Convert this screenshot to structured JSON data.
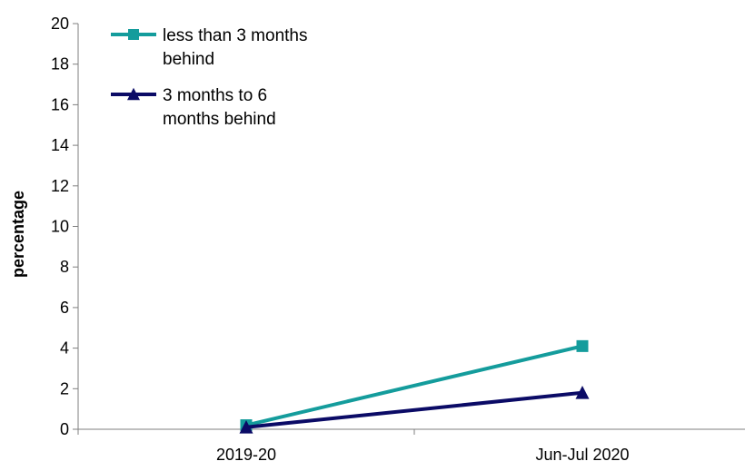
{
  "chart_data": {
    "type": "line",
    "title": "",
    "xlabel": "",
    "ylabel": "percentage",
    "categories": [
      "2019-20",
      "Jun-Jul 2020"
    ],
    "ylim": [
      0,
      20
    ],
    "yticks": [
      "0",
      "2",
      "4",
      "6",
      "8",
      "10",
      "12",
      "14",
      "16",
      "18",
      "20"
    ],
    "grid": false,
    "legend_position": "top-left",
    "series": [
      {
        "name": "less than 3 months behind",
        "legend_lines": [
          "less than 3 months",
          "behind"
        ],
        "values": [
          0.2,
          4.1
        ],
        "color": "#149C9C",
        "marker": "square"
      },
      {
        "name": "3 months to 6 months behind",
        "legend_lines": [
          "3 months to 6",
          "months behind"
        ],
        "values": [
          0.1,
          1.8
        ],
        "color": "#0B0B66",
        "marker": "triangle"
      }
    ]
  }
}
